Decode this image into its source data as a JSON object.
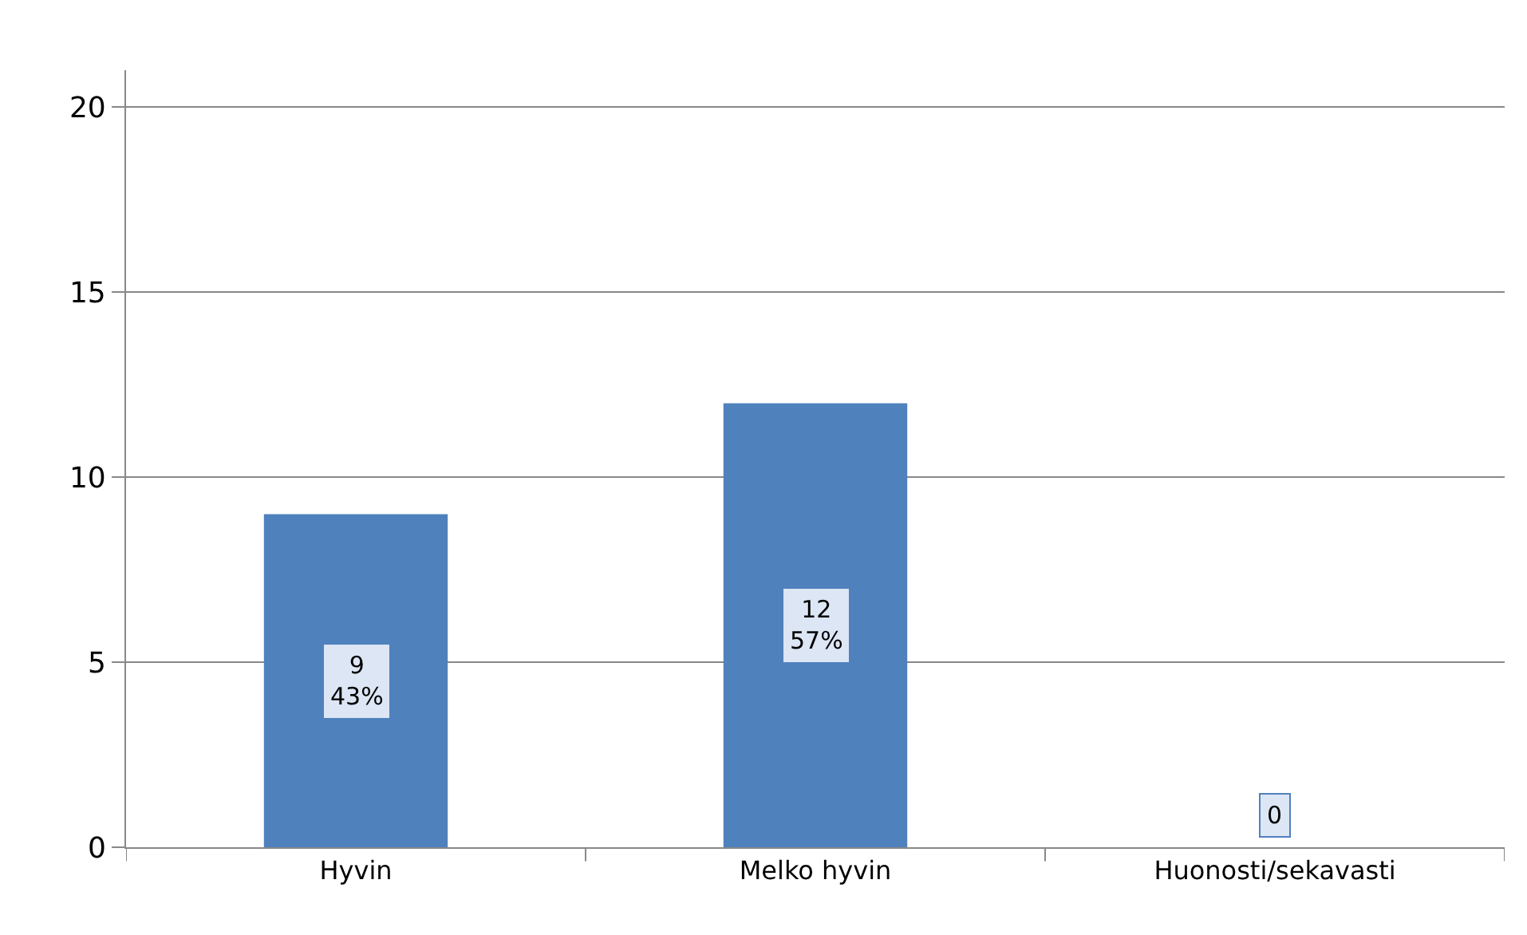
{
  "chart_data": {
    "type": "bar",
    "categories": [
      "Hyvin",
      "Melko hyvin",
      "Huonosti/sekavasti"
    ],
    "values": [
      9,
      12,
      0
    ],
    "value_labels": [
      "9\n43%",
      "12\n57%",
      "0"
    ],
    "color": "#4f81bd",
    "ylim": [
      0,
      21
    ],
    "yticks": [
      0,
      5,
      10,
      15,
      20
    ],
    "grid": "y",
    "legend": false
  }
}
